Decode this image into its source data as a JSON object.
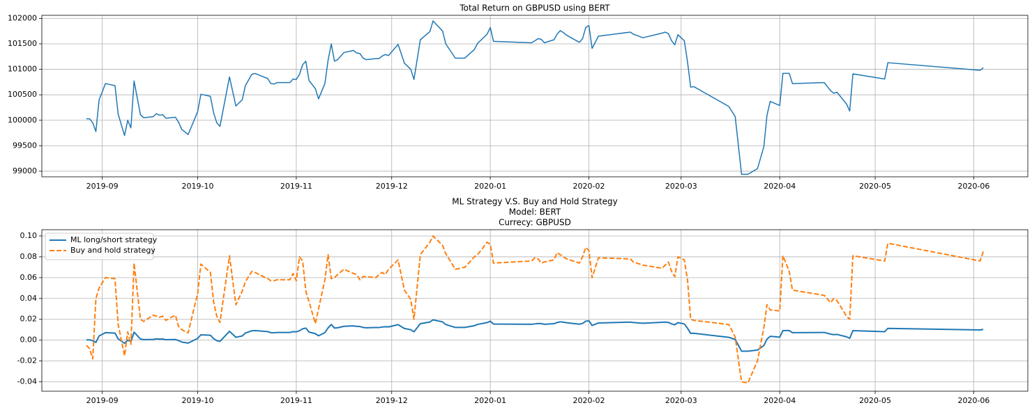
{
  "chart_data": [
    {
      "type": "line",
      "title": "Total Return on GBPUSD using BERT",
      "x": [
        -5,
        -4,
        -3,
        -2,
        -1,
        1,
        4,
        5,
        7,
        8,
        9,
        10,
        12,
        13,
        16,
        17,
        18,
        19,
        20,
        23,
        24,
        25,
        27,
        30,
        31,
        34,
        35,
        36,
        37,
        40,
        42,
        44,
        45,
        47,
        48,
        52,
        53,
        54,
        55,
        59,
        60,
        61,
        62,
        63,
        64,
        65,
        67,
        68,
        70,
        71,
        72,
        73,
        74,
        76,
        79,
        80,
        81,
        82,
        83,
        86,
        87,
        88,
        89,
        90,
        93,
        95,
        97,
        98,
        100,
        103,
        104,
        107,
        108,
        111,
        114,
        117,
        118,
        121,
        122,
        123,
        135,
        136,
        137,
        138,
        139,
        142,
        143,
        144,
        145,
        146,
        150,
        151,
        152,
        153,
        154,
        156,
        166,
        167,
        170,
        176,
        177,
        178,
        179,
        180,
        181,
        183,
        184,
        185,
        186,
        197,
        199,
        201,
        203,
        206,
        208,
        209,
        210,
        213,
        214,
        216,
        217,
        227,
        229,
        230,
        231,
        234,
        235,
        236,
        246,
        247,
        276,
        277
      ],
      "series": [
        {
          "color": "#1f77b4",
          "linestyle": "solid",
          "values": [
            100030,
            100030,
            99950,
            99780,
            100400,
            100720,
            100680,
            100120,
            99700,
            100000,
            99850,
            100770,
            100110,
            100050,
            100070,
            100130,
            100100,
            100110,
            100040,
            100060,
            99960,
            99820,
            99720,
            100170,
            100510,
            100470,
            100150,
            99950,
            99880,
            100850,
            100280,
            100400,
            100680,
            100900,
            100920,
            100820,
            100720,
            100710,
            100740,
            100740,
            100810,
            100800,
            100900,
            101090,
            101160,
            100780,
            100620,
            100420,
            100720,
            101180,
            101500,
            101160,
            101190,
            101330,
            101370,
            101320,
            101310,
            101220,
            101190,
            101210,
            101210,
            101260,
            101290,
            101270,
            101490,
            101120,
            101000,
            100800,
            101580,
            101740,
            101950,
            101750,
            101500,
            101220,
            101220,
            101390,
            101510,
            101690,
            101820,
            101550,
            101520,
            101560,
            101600,
            101590,
            101520,
            101580,
            101690,
            101760,
            101720,
            101670,
            101530,
            101600,
            101820,
            101860,
            101410,
            101650,
            101730,
            101690,
            101620,
            101710,
            101730,
            101700,
            101560,
            101480,
            101680,
            101560,
            101150,
            100650,
            100660,
            100270,
            100070,
            98940,
            98940,
            99050,
            99480,
            100100,
            100370,
            100290,
            100920,
            100920,
            100720,
            100740,
            100580,
            100530,
            100550,
            100320,
            100180,
            100910,
            100810,
            101130,
            100980,
            101030
          ]
        }
      ],
      "xlim": [
        -19,
        291
      ],
      "xticks": [
        {
          "value": 0,
          "label": "2019-09"
        },
        {
          "value": 30,
          "label": "2019-10"
        },
        {
          "value": 61,
          "label": "2019-11"
        },
        {
          "value": 91,
          "label": "2019-12"
        },
        {
          "value": 122,
          "label": "2020-01"
        },
        {
          "value": 153,
          "label": "2020-02"
        },
        {
          "value": 182,
          "label": "2020-03"
        },
        {
          "value": 213,
          "label": "2020-04"
        },
        {
          "value": 243,
          "label": "2020-05"
        },
        {
          "value": 274,
          "label": "2020-06"
        }
      ],
      "ylim": [
        98890,
        102060
      ],
      "yticks": [
        99000,
        99500,
        100000,
        100500,
        101000,
        101500,
        102000
      ],
      "grid": true
    },
    {
      "type": "line",
      "title": [
        "ML Strategy V.S. Buy and Hold Strategy",
        "Model: BERT",
        "Currecy: GBPUSD"
      ],
      "x": [
        -5,
        -4,
        -3,
        -2,
        -1,
        1,
        4,
        5,
        7,
        8,
        9,
        10,
        12,
        13,
        16,
        17,
        18,
        19,
        20,
        23,
        24,
        25,
        27,
        30,
        31,
        34,
        35,
        36,
        37,
        40,
        42,
        44,
        45,
        47,
        48,
        52,
        53,
        54,
        55,
        59,
        60,
        61,
        62,
        63,
        64,
        65,
        67,
        68,
        70,
        71,
        72,
        73,
        74,
        76,
        79,
        80,
        81,
        82,
        83,
        86,
        87,
        88,
        89,
        90,
        93,
        95,
        97,
        98,
        100,
        103,
        104,
        107,
        108,
        111,
        114,
        117,
        118,
        121,
        122,
        123,
        135,
        136,
        137,
        138,
        139,
        142,
        143,
        144,
        145,
        146,
        150,
        151,
        152,
        153,
        154,
        156,
        166,
        167,
        170,
        176,
        177,
        178,
        179,
        180,
        181,
        183,
        184,
        185,
        186,
        197,
        199,
        201,
        203,
        206,
        208,
        209,
        210,
        213,
        214,
        216,
        217,
        227,
        229,
        230,
        231,
        234,
        235,
        236,
        246,
        247,
        276,
        277
      ],
      "series": [
        {
          "name": "ML long/short strategy",
          "color": "#1f77b4",
          "linestyle": "solid",
          "values": [
            0.0003,
            0.0003,
            -0.0005,
            -0.0022,
            0.004,
            0.0072,
            0.0068,
            0.0012,
            -0.003,
            0,
            -0.0015,
            0.0077,
            0.0011,
            0.0005,
            0.0007,
            0.0013,
            0.001,
            0.0011,
            0.0004,
            0.0006,
            -0.0004,
            -0.0018,
            -0.0028,
            0.0017,
            0.0051,
            0.0047,
            0.0015,
            -0.0005,
            -0.0012,
            0.0085,
            0.0028,
            0.004,
            0.0068,
            0.009,
            0.0092,
            0.0082,
            0.0072,
            0.0071,
            0.0074,
            0.0074,
            0.0081,
            0.008,
            0.009,
            0.0109,
            0.0116,
            0.0078,
            0.0062,
            0.0042,
            0.0072,
            0.0118,
            0.015,
            0.0116,
            0.0119,
            0.0133,
            0.0137,
            0.0132,
            0.0131,
            0.0122,
            0.0119,
            0.0121,
            0.0121,
            0.0126,
            0.0129,
            0.0127,
            0.0149,
            0.0112,
            0.01,
            0.008,
            0.0158,
            0.0174,
            0.0195,
            0.0175,
            0.015,
            0.0122,
            0.0122,
            0.0139,
            0.0151,
            0.0169,
            0.0182,
            0.0155,
            0.0152,
            0.0156,
            0.016,
            0.0159,
            0.0152,
            0.0158,
            0.0169,
            0.0176,
            0.0172,
            0.0167,
            0.0153,
            0.016,
            0.0182,
            0.0186,
            0.0141,
            0.0165,
            0.0173,
            0.0169,
            0.0162,
            0.0171,
            0.0173,
            0.017,
            0.0156,
            0.0148,
            0.0168,
            0.0156,
            0.0115,
            0.0065,
            0.0066,
            0.0027,
            0.0007,
            -0.0106,
            -0.0106,
            -0.0095,
            -0.0052,
            0.001,
            0.0037,
            0.0029,
            0.0092,
            0.0092,
            0.0072,
            0.0074,
            0.0058,
            0.0053,
            0.0055,
            0.0032,
            0.0018,
            0.0091,
            0.0081,
            0.0113,
            0.0098,
            0.0103
          ]
        },
        {
          "name": "Buy and hold strategy",
          "color": "#ff7f0e",
          "linestyle": "dashed",
          "values": [
            -0.005,
            -0.008,
            -0.018,
            0.04,
            0.05,
            0.06,
            0.059,
            0.015,
            -0.015,
            0.008,
            -0.004,
            0.074,
            0.02,
            0.018,
            0.024,
            0.023,
            0.022,
            0.023,
            0.019,
            0.024,
            0.013,
            0.01,
            0.007,
            0.045,
            0.073,
            0.065,
            0.037,
            0.023,
            0.017,
            0.081,
            0.034,
            0.047,
            0.056,
            0.066,
            0.065,
            0.059,
            0.057,
            0.057,
            0.058,
            0.058,
            0.064,
            0.057,
            0.08,
            0.076,
            0.047,
            0.037,
            0.016,
            0.03,
            0.058,
            0.082,
            0.059,
            0.06,
            0.063,
            0.068,
            0.064,
            0.063,
            0.058,
            0.061,
            0.061,
            0.06,
            0.063,
            0.065,
            0.063,
            0.068,
            0.077,
            0.048,
            0.039,
            0.02,
            0.082,
            0.094,
            0.1,
            0.091,
            0.083,
            0.068,
            0.07,
            0.08,
            0.082,
            0.094,
            0.092,
            0.074,
            0.076,
            0.079,
            0.078,
            0.074,
            0.075,
            0.077,
            0.084,
            0.082,
            0.08,
            0.078,
            0.074,
            0.08,
            0.089,
            0.086,
            0.06,
            0.079,
            0.078,
            0.075,
            0.072,
            0.069,
            0.072,
            0.075,
            0.066,
            0.061,
            0.08,
            0.077,
            0.058,
            0.02,
            0.019,
            0.015,
            0.003,
            -0.04,
            -0.041,
            -0.02,
            0.012,
            0.034,
            0.029,
            0.028,
            0.081,
            0.066,
            0.048,
            0.043,
            0.036,
            0.04,
            0.038,
            0.023,
            0.02,
            0.081,
            0.076,
            0.093,
            0.076,
            0.085
          ]
        }
      ],
      "xlim": [
        -19,
        291
      ],
      "xticks": [
        {
          "value": 0,
          "label": "2019-09"
        },
        {
          "value": 30,
          "label": "2019-10"
        },
        {
          "value": 61,
          "label": "2019-11"
        },
        {
          "value": 91,
          "label": "2019-12"
        },
        {
          "value": 122,
          "label": "2020-01"
        },
        {
          "value": 153,
          "label": "2020-02"
        },
        {
          "value": 182,
          "label": "2020-03"
        },
        {
          "value": 213,
          "label": "2020-04"
        },
        {
          "value": 243,
          "label": "2020-05"
        },
        {
          "value": 274,
          "label": "2020-06"
        }
      ],
      "ylim": [
        -0.049,
        0.106
      ],
      "yticks": [
        -0.04,
        -0.02,
        {
          "value": 0,
          "label": "0.00"
        },
        0.02,
        0.04,
        0.06,
        0.08,
        {
          "value": 0.1,
          "label": "0.10"
        }
      ],
      "grid": true,
      "legend": "upper left"
    }
  ]
}
